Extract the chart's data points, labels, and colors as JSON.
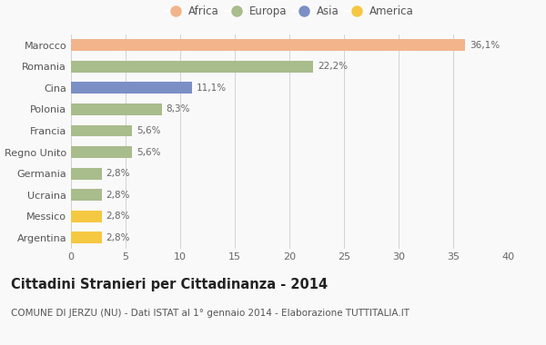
{
  "categories": [
    "Marocco",
    "Romania",
    "Cina",
    "Polonia",
    "Francia",
    "Regno Unito",
    "Germania",
    "Ucraina",
    "Messico",
    "Argentina"
  ],
  "values": [
    36.1,
    22.2,
    11.1,
    8.3,
    5.6,
    5.6,
    2.8,
    2.8,
    2.8,
    2.8
  ],
  "labels": [
    "36,1%",
    "22,2%",
    "11,1%",
    "8,3%",
    "5,6%",
    "5,6%",
    "2,8%",
    "2,8%",
    "2,8%",
    "2,8%"
  ],
  "colors": [
    "#F2B48A",
    "#A8BC8C",
    "#7B8FC4",
    "#A8BC8C",
    "#A8BC8C",
    "#A8BC8C",
    "#A8BC8C",
    "#A8BC8C",
    "#F5C842",
    "#F5C842"
  ],
  "legend_labels": [
    "Africa",
    "Europa",
    "Asia",
    "America"
  ],
  "legend_colors": [
    "#F2B48A",
    "#A8BC8C",
    "#7B8FC4",
    "#F5C842"
  ],
  "title": "Cittadini Stranieri per Cittadinanza - 2014",
  "subtitle": "COMUNE DI JERZU (NU) - Dati ISTAT al 1° gennaio 2014 - Elaborazione TUTTITALIA.IT",
  "xlim": [
    0,
    40
  ],
  "xticks": [
    0,
    5,
    10,
    15,
    20,
    25,
    30,
    35,
    40
  ],
  "background_color": "#f9f9f9",
  "grid_color": "#cccccc",
  "title_fontsize": 10.5,
  "subtitle_fontsize": 7.5,
  "label_fontsize": 7.5,
  "tick_fontsize": 8,
  "legend_fontsize": 8.5
}
